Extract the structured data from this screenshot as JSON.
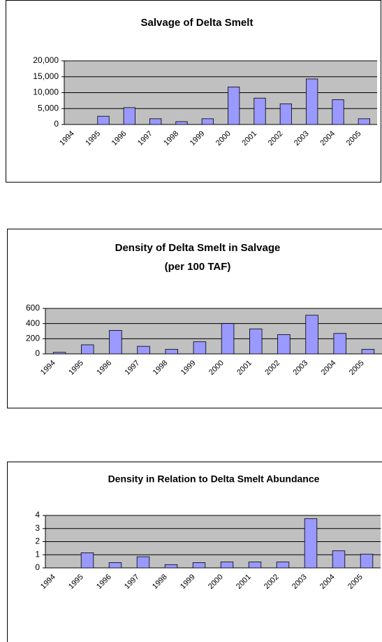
{
  "chart_data": [
    {
      "type": "bar",
      "title": "Salvage of Delta Smelt",
      "categories": [
        "1994",
        "1995",
        "1996",
        "1997",
        "1998",
        "1999",
        "2000",
        "2001",
        "2002",
        "2003",
        "2004",
        "2005"
      ],
      "values": [
        0,
        2600,
        5300,
        1800,
        900,
        1800,
        11800,
        8300,
        6500,
        14300,
        7800,
        1800
      ],
      "color": "#9999ff",
      "ylim": [
        0,
        20000
      ],
      "yticks": [
        0,
        {
          "value": 5000,
          "label": "5,000"
        },
        {
          "value": 10000,
          "label": "10,000"
        },
        {
          "value": 15000,
          "label": "15,000"
        },
        {
          "value": 20000,
          "label": "20,000"
        }
      ],
      "grid": true
    },
    {
      "type": "bar",
      "title": "Density of Delta Smelt in Salvage",
      "subtitle": "(per 100 TAF)",
      "categories": [
        "1994",
        "1995",
        "1996",
        "1997",
        "1998",
        "1999",
        "2000",
        "2001",
        "2002",
        "2003",
        "2004",
        "2005"
      ],
      "values": [
        20,
        120,
        310,
        100,
        60,
        160,
        400,
        330,
        255,
        510,
        270,
        60
      ],
      "color": "#9999ff",
      "ylim": [
        0,
        600
      ],
      "yticks": [
        0,
        200,
        400,
        600
      ],
      "grid": true
    },
    {
      "type": "bar",
      "title": "Density in Relation to Delta Smelt Abundance",
      "categories": [
        "1994",
        "1995",
        "1996",
        "1997",
        "1998",
        "1999",
        "2000",
        "2001",
        "2002",
        "2003",
        "2004",
        "2005"
      ],
      "values": [
        0,
        1.15,
        0.4,
        0.85,
        0.25,
        0.4,
        0.45,
        0.45,
        0.45,
        3.75,
        1.3,
        1.05
      ],
      "color": "#9999ff",
      "ylim": [
        0,
        4
      ],
      "yticks": [
        0,
        1,
        2,
        3,
        4
      ],
      "grid": true
    }
  ]
}
